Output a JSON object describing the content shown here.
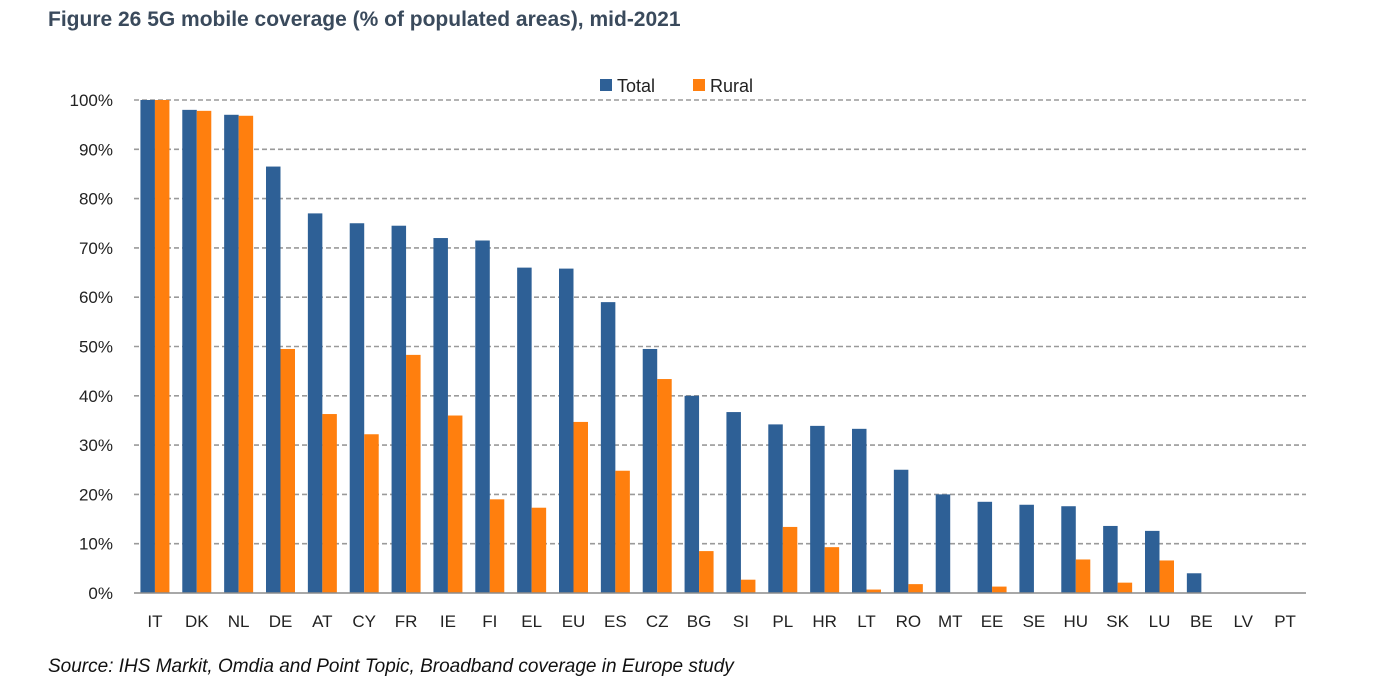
{
  "figure": {
    "title": "Figure 26 5G mobile coverage (% of populated areas), mid-2021",
    "source": "Source: IHS Markit, Omdia and Point Topic, Broadband coverage in Europe study"
  },
  "chart_data": {
    "type": "bar",
    "title": "Figure 26 5G mobile coverage (% of populated areas), mid-2021",
    "xlabel": "",
    "ylabel": "",
    "ylim": [
      0,
      100
    ],
    "yticks": [
      "0%",
      "10%",
      "20%",
      "30%",
      "40%",
      "50%",
      "60%",
      "70%",
      "80%",
      "90%",
      "100%"
    ],
    "grid": true,
    "legend_position": "top-center",
    "categories": [
      "IT",
      "DK",
      "NL",
      "DE",
      "AT",
      "CY",
      "FR",
      "IE",
      "FI",
      "EL",
      "EU",
      "ES",
      "CZ",
      "BG",
      "SI",
      "PL",
      "HR",
      "LT",
      "RO",
      "MT",
      "EE",
      "SE",
      "HU",
      "SK",
      "LU",
      "BE",
      "LV",
      "PT"
    ],
    "series": [
      {
        "name": "Total",
        "color": "#2e6096",
        "values": [
          100,
          98,
          97,
          86.5,
          77,
          75,
          74.5,
          72,
          71.5,
          66,
          65.8,
          59,
          49.5,
          40,
          36.7,
          34.2,
          33.9,
          33.3,
          25,
          20,
          18.5,
          17.9,
          17.6,
          13.6,
          12.6,
          4,
          0,
          0
        ]
      },
      {
        "name": "Rural",
        "color": "#ff7f0e",
        "values": [
          100,
          97.8,
          96.8,
          49.5,
          36.3,
          32.2,
          48.3,
          36,
          19,
          17.3,
          34.7,
          24.8,
          43.4,
          8.5,
          2.7,
          13.4,
          9.3,
          0.7,
          1.8,
          0,
          1.3,
          0,
          6.8,
          2.1,
          6.6,
          0,
          0,
          0
        ]
      }
    ]
  }
}
